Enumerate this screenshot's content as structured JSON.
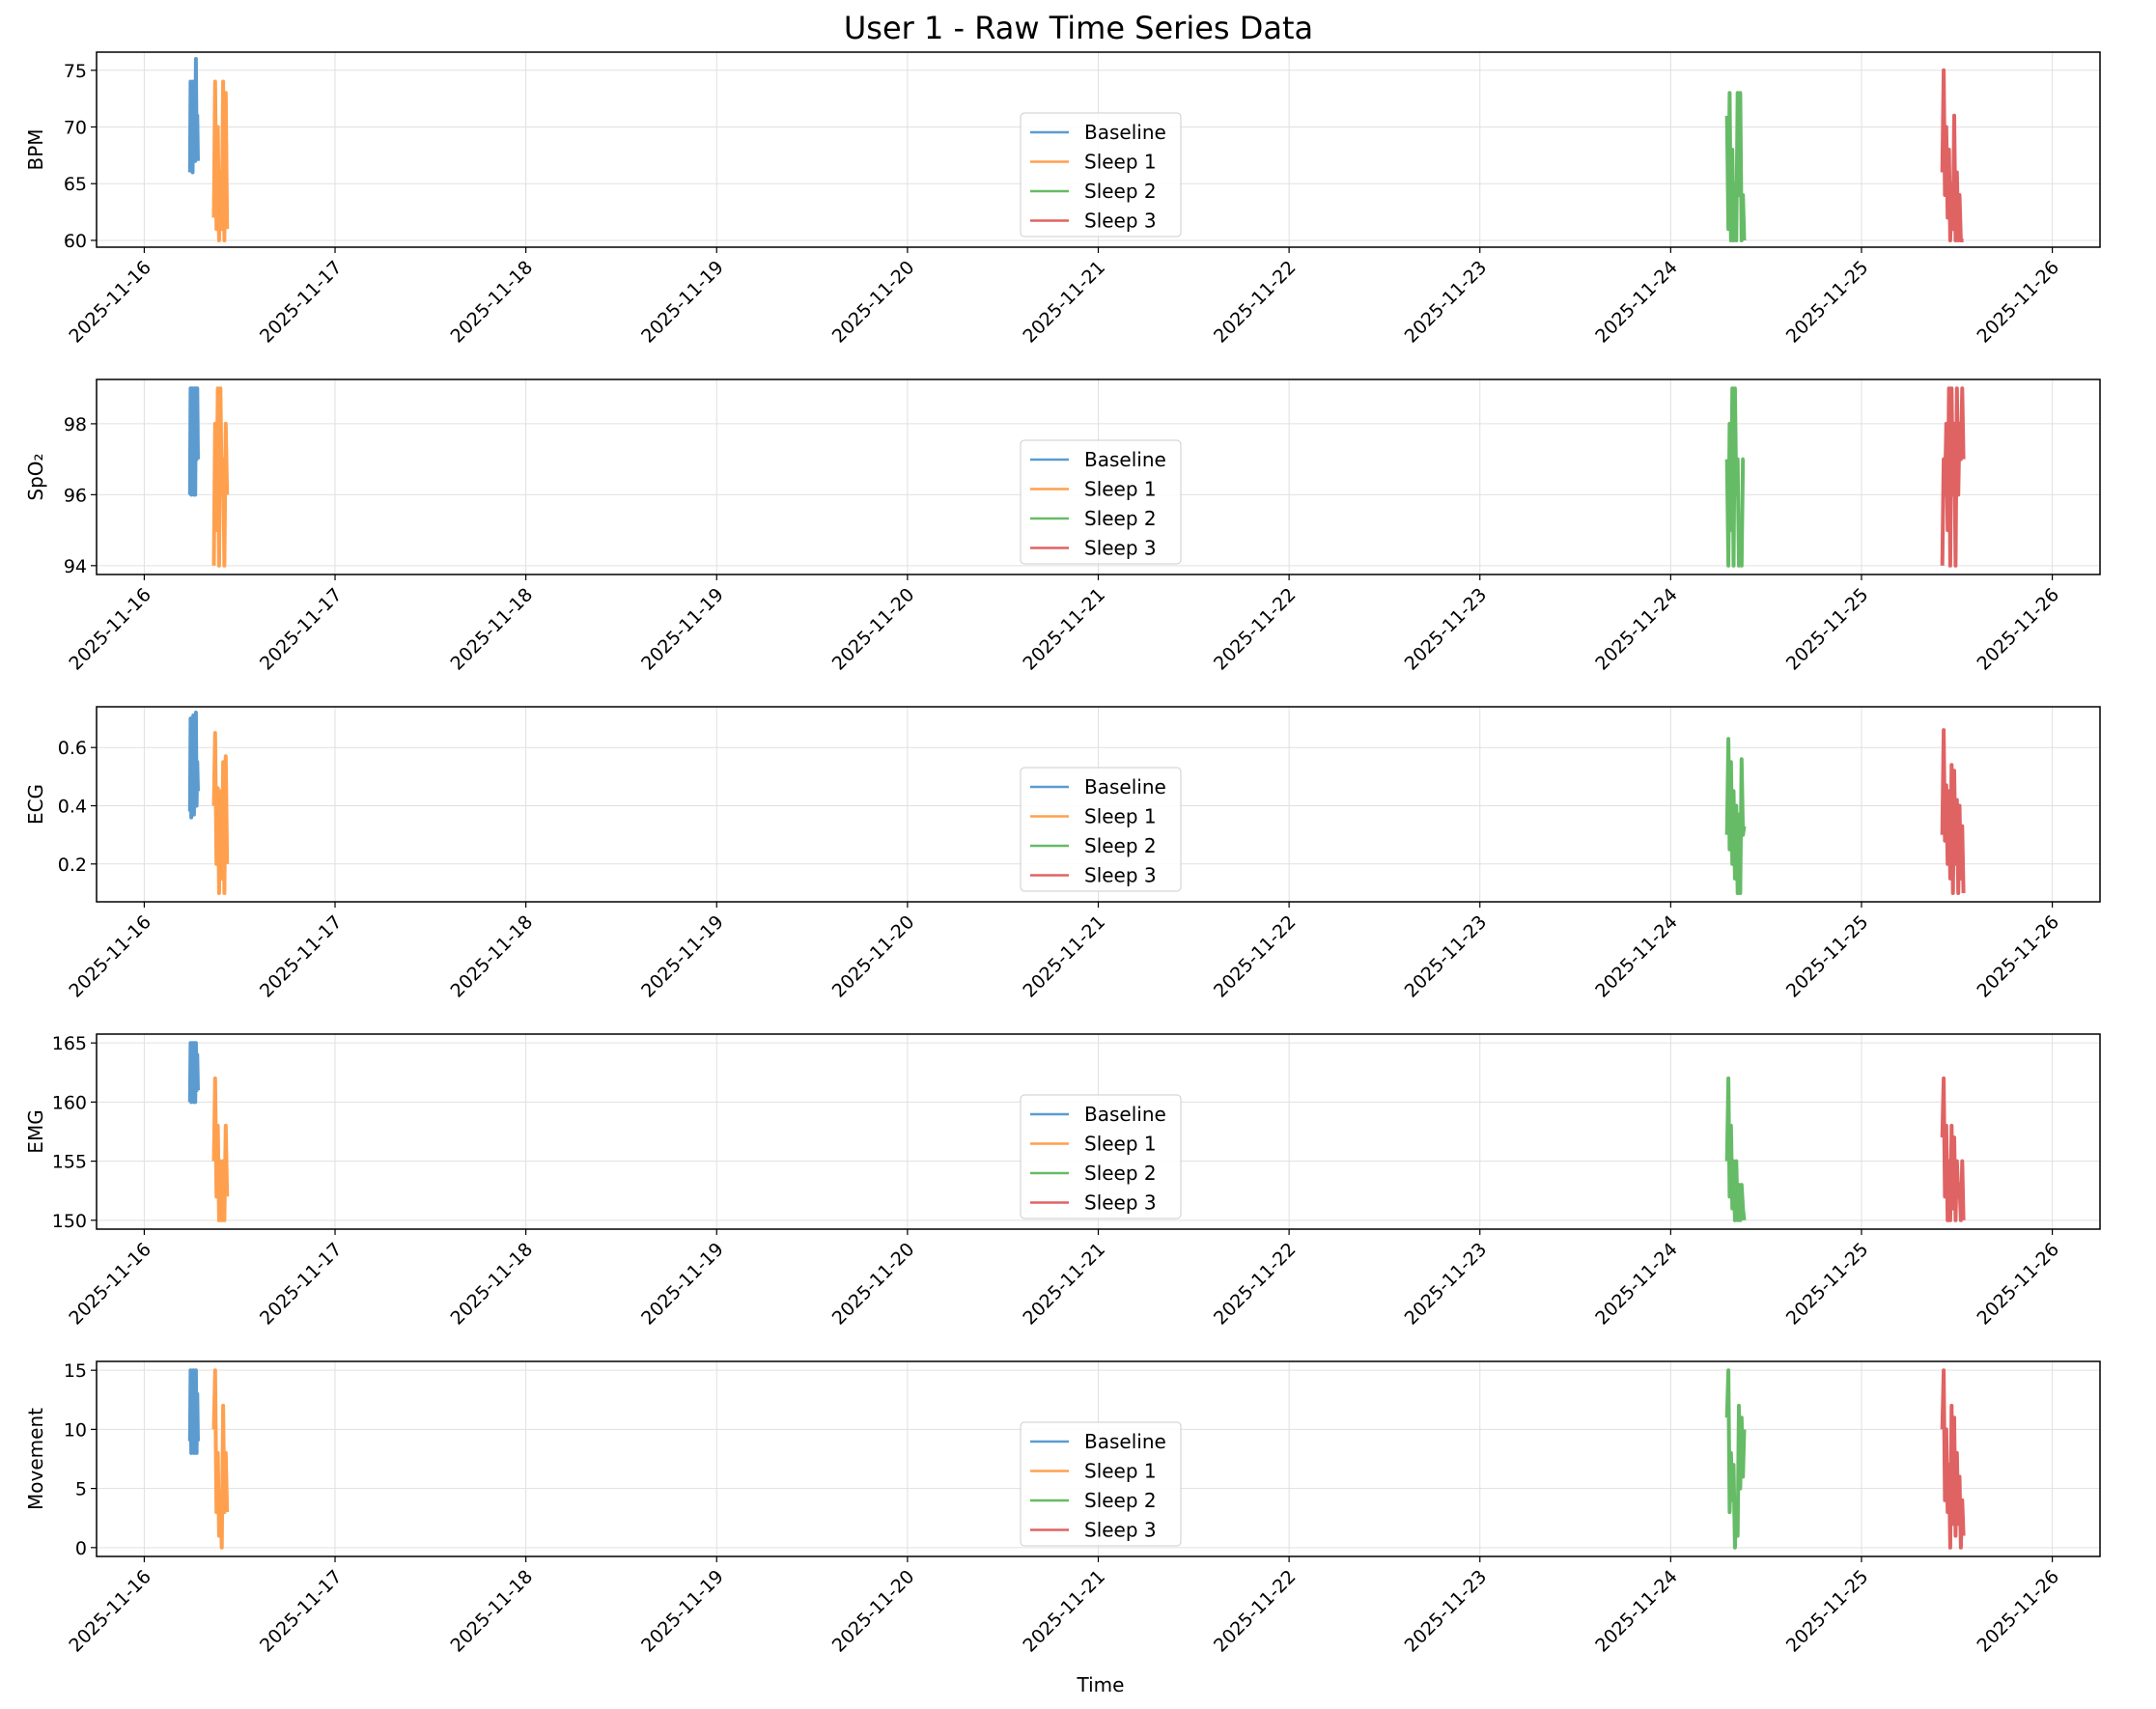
{
  "title": "User 1 - Raw Time Series Data",
  "xlabel": "Time",
  "x_tick_labels": [
    "2025-11-16",
    "2025-11-17",
    "2025-11-18",
    "2025-11-19",
    "2025-11-20",
    "2025-11-21",
    "2025-11-22",
    "2025-11-23",
    "2025-11-24",
    "2025-11-25",
    "2025-11-26"
  ],
  "colors": {
    "Baseline": "#5b9bd0",
    "Sleep 1": "#ffa04f",
    "Sleep 2": "#66bb66",
    "Sleep 3": "#e06363"
  },
  "chart_data": {
    "type": "line",
    "x_axis": {
      "type": "date",
      "range": [
        "2025-11-15 18:00",
        "2025-11-26 06:00"
      ]
    },
    "legend_placement": "center",
    "grid": true,
    "panels": [
      {
        "ylabel": "BPM",
        "ylim": [
          59.4,
          76.6
        ],
        "yticks": [
          60,
          65,
          70,
          75
        ],
        "ytick_labels": [
          "60",
          "65",
          "70",
          "75"
        ],
        "series": [
          {
            "name": "Baseline",
            "x": [
              "2025-11-16 05:45",
              "2025-11-16 05:50",
              "2025-11-16 05:55",
              "2025-11-16 06:00",
              "2025-11-16 06:05",
              "2025-11-16 06:10",
              "2025-11-16 06:15",
              "2025-11-16 06:20",
              "2025-11-16 06:25",
              "2025-11-16 06:30",
              "2025-11-16 06:35",
              "2025-11-16 06:40",
              "2025-11-16 06:45"
            ],
            "y": [
              66,
              74,
              67,
              73,
              66,
              74,
              68,
              72,
              67,
              76,
              68,
              71,
              67
            ]
          },
          {
            "name": "Sleep 1",
            "x": [
              "2025-11-16 08:45",
              "2025-11-16 08:55",
              "2025-11-16 09:05",
              "2025-11-16 09:15",
              "2025-11-16 09:25",
              "2025-11-16 09:35",
              "2025-11-16 09:45",
              "2025-11-16 09:55",
              "2025-11-16 10:05",
              "2025-11-16 10:15",
              "2025-11-16 10:25"
            ],
            "y": [
              62,
              74,
              61,
              70,
              60,
              66,
              61,
              74,
              60,
              73,
              61
            ]
          },
          {
            "name": "Sleep 2",
            "x": [
              "2025-11-24 07:05",
              "2025-11-24 07:15",
              "2025-11-24 07:25",
              "2025-11-24 07:35",
              "2025-11-24 07:45",
              "2025-11-24 07:55",
              "2025-11-24 08:05",
              "2025-11-24 08:15",
              "2025-11-24 08:25",
              "2025-11-24 08:35",
              "2025-11-24 08:45",
              "2025-11-24 08:55",
              "2025-11-24 09:05",
              "2025-11-24 09:15"
            ],
            "y": [
              71,
              61,
              73,
              60,
              68,
              60,
              65,
              60,
              73,
              64,
              73,
              60,
              64,
              60
            ]
          },
          {
            "name": "Sleep 3",
            "x": [
              "2025-11-25 10:10",
              "2025-11-25 10:20",
              "2025-11-25 10:30",
              "2025-11-25 10:40",
              "2025-11-25 10:50",
              "2025-11-25 11:00",
              "2025-11-25 11:10",
              "2025-11-25 11:20",
              "2025-11-25 11:30",
              "2025-11-25 11:40",
              "2025-11-25 11:50",
              "2025-11-25 12:00",
              "2025-11-25 12:10",
              "2025-11-25 12:20",
              "2025-11-25 12:30",
              "2025-11-25 12:40",
              "2025-11-25 12:50"
            ],
            "y": [
              66,
              75,
              64,
              70,
              62,
              68,
              60,
              65,
              61,
              71,
              60,
              66,
              60,
              64,
              60,
              60,
              60
            ]
          }
        ]
      },
      {
        "ylabel": "SpO₂",
        "ylim": [
          93.75,
          99.25
        ],
        "yticks": [
          94,
          96,
          98
        ],
        "ytick_labels": [
          "94",
          "96",
          "98"
        ],
        "series": [
          {
            "name": "Baseline",
            "x": [
              "2025-11-16 05:45",
              "2025-11-16 05:50",
              "2025-11-16 05:55",
              "2025-11-16 06:00",
              "2025-11-16 06:05",
              "2025-11-16 06:10",
              "2025-11-16 06:15",
              "2025-11-16 06:20",
              "2025-11-16 06:25",
              "2025-11-16 06:30",
              "2025-11-16 06:35",
              "2025-11-16 06:40",
              "2025-11-16 06:45"
            ],
            "y": [
              96,
              99,
              96,
              99,
              97,
              99,
              96,
              99,
              96,
              99,
              97,
              99,
              97
            ]
          },
          {
            "name": "Sleep 1",
            "x": [
              "2025-11-16 08:45",
              "2025-11-16 08:55",
              "2025-11-16 09:05",
              "2025-11-16 09:15",
              "2025-11-16 09:25",
              "2025-11-16 09:35",
              "2025-11-16 09:45",
              "2025-11-16 09:55",
              "2025-11-16 10:05",
              "2025-11-16 10:15",
              "2025-11-16 10:25"
            ],
            "y": [
              94,
              98,
              95,
              99,
              94,
              99,
              96,
              97,
              94,
              98,
              96
            ]
          },
          {
            "name": "Sleep 2",
            "x": [
              "2025-11-24 07:05",
              "2025-11-24 07:15",
              "2025-11-24 07:25",
              "2025-11-24 07:35",
              "2025-11-24 07:45",
              "2025-11-24 07:55",
              "2025-11-24 08:05",
              "2025-11-24 08:15",
              "2025-11-24 08:25",
              "2025-11-24 08:35",
              "2025-11-24 08:45",
              "2025-11-24 08:55",
              "2025-11-24 09:05",
              "2025-11-24 09:15"
            ],
            "y": [
              97,
              94,
              98,
              95,
              99,
              94,
              99,
              96,
              97,
              94,
              95,
              94,
              97,
              97
            ]
          },
          {
            "name": "Sleep 3",
            "x": [
              "2025-11-25 10:10",
              "2025-11-25 10:20",
              "2025-11-25 10:30",
              "2025-11-25 10:40",
              "2025-11-25 10:50",
              "2025-11-25 11:00",
              "2025-11-25 11:10",
              "2025-11-25 11:20",
              "2025-11-25 11:30",
              "2025-11-25 11:40",
              "2025-11-25 11:50",
              "2025-11-25 12:00",
              "2025-11-25 12:10",
              "2025-11-25 12:20",
              "2025-11-25 12:30",
              "2025-11-25 12:40",
              "2025-11-25 12:50"
            ],
            "y": [
              94,
              97,
              96,
              98,
              95,
              99,
              94,
              99,
              96,
              98,
              94,
              99,
              96,
              98,
              97,
              99,
              97
            ]
          }
        ]
      },
      {
        "ylabel": "ECG",
        "ylim": [
          0.07,
          0.74
        ],
        "yticks": [
          0.2,
          0.4,
          0.6
        ],
        "ytick_labels": [
          "0.2",
          "0.4",
          "0.6"
        ],
        "series": [
          {
            "name": "Baseline",
            "x": [
              "2025-11-16 05:45",
              "2025-11-16 05:50",
              "2025-11-16 05:55",
              "2025-11-16 06:00",
              "2025-11-16 06:05",
              "2025-11-16 06:10",
              "2025-11-16 06:15",
              "2025-11-16 06:20",
              "2025-11-16 06:25",
              "2025-11-16 06:30",
              "2025-11-16 06:35",
              "2025-11-16 06:40",
              "2025-11-16 06:45"
            ],
            "y": [
              0.38,
              0.7,
              0.36,
              0.68,
              0.4,
              0.71,
              0.37,
              0.66,
              0.42,
              0.72,
              0.4,
              0.55,
              0.45
            ]
          },
          {
            "name": "Sleep 1",
            "x": [
              "2025-11-16 08:45",
              "2025-11-16 08:55",
              "2025-11-16 09:05",
              "2025-11-16 09:15",
              "2025-11-16 09:25",
              "2025-11-16 09:35",
              "2025-11-16 09:45",
              "2025-11-16 09:55",
              "2025-11-16 10:05",
              "2025-11-16 10:15",
              "2025-11-16 10:25"
            ],
            "y": [
              0.4,
              0.65,
              0.2,
              0.46,
              0.1,
              0.45,
              0.15,
              0.55,
              0.1,
              0.57,
              0.2
            ]
          },
          {
            "name": "Sleep 2",
            "x": [
              "2025-11-24 07:05",
              "2025-11-24 07:15",
              "2025-11-24 07:25",
              "2025-11-24 07:35",
              "2025-11-24 07:45",
              "2025-11-24 07:55",
              "2025-11-24 08:05",
              "2025-11-24 08:15",
              "2025-11-24 08:25",
              "2025-11-24 08:35",
              "2025-11-24 08:45",
              "2025-11-24 08:55",
              "2025-11-24 09:05",
              "2025-11-24 09:15"
            ],
            "y": [
              0.3,
              0.63,
              0.25,
              0.55,
              0.2,
              0.45,
              0.15,
              0.4,
              0.1,
              0.37,
              0.1,
              0.56,
              0.3,
              0.33
            ]
          },
          {
            "name": "Sleep 3",
            "x": [
              "2025-11-25 10:10",
              "2025-11-25 10:20",
              "2025-11-25 10:30",
              "2025-11-25 10:40",
              "2025-11-25 10:50",
              "2025-11-25 11:00",
              "2025-11-25 11:10",
              "2025-11-25 11:20",
              "2025-11-25 11:30",
              "2025-11-25 11:40",
              "2025-11-25 11:50",
              "2025-11-25 12:00",
              "2025-11-25 12:10",
              "2025-11-25 12:20",
              "2025-11-25 12:30",
              "2025-11-25 12:40",
              "2025-11-25 12:50"
            ],
            "y": [
              0.3,
              0.66,
              0.28,
              0.47,
              0.2,
              0.45,
              0.15,
              0.54,
              0.1,
              0.52,
              0.2,
              0.42,
              0.1,
              0.4,
              0.15,
              0.33,
              0.1
            ]
          }
        ]
      },
      {
        "ylabel": "EMG",
        "ylim": [
          149.25,
          165.75
        ],
        "yticks": [
          150,
          155,
          160,
          165
        ],
        "ytick_labels": [
          "150",
          "155",
          "160",
          "165"
        ],
        "series": [
          {
            "name": "Baseline",
            "x": [
              "2025-11-16 05:45",
              "2025-11-16 05:50",
              "2025-11-16 05:55",
              "2025-11-16 06:00",
              "2025-11-16 06:05",
              "2025-11-16 06:10",
              "2025-11-16 06:15",
              "2025-11-16 06:20",
              "2025-11-16 06:25",
              "2025-11-16 06:30",
              "2025-11-16 06:35",
              "2025-11-16 06:40",
              "2025-11-16 06:45"
            ],
            "y": [
              160,
              165,
              160,
              165,
              161,
              165,
              160,
              165,
              160,
              165,
              161,
              164,
              161
            ]
          },
          {
            "name": "Sleep 1",
            "x": [
              "2025-11-16 08:45",
              "2025-11-16 08:55",
              "2025-11-16 09:05",
              "2025-11-16 09:15",
              "2025-11-16 09:25",
              "2025-11-16 09:35",
              "2025-11-16 09:45",
              "2025-11-16 09:55",
              "2025-11-16 10:05",
              "2025-11-16 10:15",
              "2025-11-16 10:25"
            ],
            "y": [
              155,
              162,
              152,
              158,
              150,
              155,
              150,
              155,
              150,
              158,
              152
            ]
          },
          {
            "name": "Sleep 2",
            "x": [
              "2025-11-24 07:05",
              "2025-11-24 07:15",
              "2025-11-24 07:25",
              "2025-11-24 07:35",
              "2025-11-24 07:45",
              "2025-11-24 07:55",
              "2025-11-24 08:05",
              "2025-11-24 08:15",
              "2025-11-24 08:25",
              "2025-11-24 08:35",
              "2025-11-24 08:45",
              "2025-11-24 08:55",
              "2025-11-24 09:05",
              "2025-11-24 09:15"
            ],
            "y": [
              155,
              162,
              152,
              158,
              151,
              155,
              150,
              155,
              150,
              153,
              150,
              153,
              151,
              150
            ]
          },
          {
            "name": "Sleep 3",
            "x": [
              "2025-11-25 10:10",
              "2025-11-25 10:20",
              "2025-11-25 10:30",
              "2025-11-25 10:40",
              "2025-11-25 10:50",
              "2025-11-25 11:00",
              "2025-11-25 11:10",
              "2025-11-25 11:20",
              "2025-11-25 11:30",
              "2025-11-25 11:40",
              "2025-11-25 11:50",
              "2025-11-25 12:00",
              "2025-11-25 12:10",
              "2025-11-25 12:20",
              "2025-11-25 12:30",
              "2025-11-25 12:40",
              "2025-11-25 12:50"
            ],
            "y": [
              157,
              162,
              152,
              158,
              150,
              155,
              150,
              158,
              151,
              157,
              150,
              155,
              152,
              153,
              150,
              155,
              150
            ]
          }
        ]
      },
      {
        "ylabel": "Movement",
        "ylim": [
          -0.75,
          15.75
        ],
        "yticks": [
          0,
          5,
          10,
          15
        ],
        "ytick_labels": [
          "0",
          "5",
          "10",
          "15"
        ],
        "series": [
          {
            "name": "Baseline",
            "x": [
              "2025-11-16 05:45",
              "2025-11-16 05:50",
              "2025-11-16 05:55",
              "2025-11-16 06:00",
              "2025-11-16 06:05",
              "2025-11-16 06:10",
              "2025-11-16 06:15",
              "2025-11-16 06:20",
              "2025-11-16 06:25",
              "2025-11-16 06:30",
              "2025-11-16 06:35",
              "2025-11-16 06:40",
              "2025-11-16 06:45"
            ],
            "y": [
              9,
              15,
              8,
              14,
              9,
              15,
              8,
              14,
              10,
              15,
              8,
              13,
              9
            ]
          },
          {
            "name": "Sleep 1",
            "x": [
              "2025-11-16 08:45",
              "2025-11-16 08:55",
              "2025-11-16 09:05",
              "2025-11-16 09:15",
              "2025-11-16 09:25",
              "2025-11-16 09:35",
              "2025-11-16 09:45",
              "2025-11-16 09:55",
              "2025-11-16 10:05",
              "2025-11-16 10:15",
              "2025-11-16 10:25"
            ],
            "y": [
              10,
              15,
              3,
              8,
              1,
              4,
              0,
              12,
              3,
              8,
              3
            ]
          },
          {
            "name": "Sleep 2",
            "x": [
              "2025-11-24 07:05",
              "2025-11-24 07:15",
              "2025-11-24 07:25",
              "2025-11-24 07:35",
              "2025-11-24 07:45",
              "2025-11-24 07:55",
              "2025-11-24 08:05",
              "2025-11-24 08:15",
              "2025-11-24 08:25",
              "2025-11-24 08:35",
              "2025-11-24 08:45",
              "2025-11-24 08:55",
              "2025-11-24 09:05",
              "2025-11-24 09:15"
            ],
            "y": [
              11,
              15,
              3,
              8,
              4,
              7,
              0,
              4,
              1,
              12,
              5,
              11,
              6,
              10
            ]
          },
          {
            "name": "Sleep 3",
            "x": [
              "2025-11-25 10:10",
              "2025-11-25 10:20",
              "2025-11-25 10:30",
              "2025-11-25 10:40",
              "2025-11-25 10:50",
              "2025-11-25 11:00",
              "2025-11-25 11:10",
              "2025-11-25 11:20",
              "2025-11-25 11:30",
              "2025-11-25 11:40",
              "2025-11-25 11:50",
              "2025-11-25 12:00",
              "2025-11-25 12:10",
              "2025-11-25 12:20",
              "2025-11-25 12:30",
              "2025-11-25 12:40",
              "2025-11-25 12:50"
            ],
            "y": [
              10,
              15,
              4,
              10,
              3,
              7,
              0,
              12,
              2,
              11,
              1,
              8,
              2,
              6,
              0,
              4,
              1
            ]
          }
        ]
      }
    ]
  }
}
